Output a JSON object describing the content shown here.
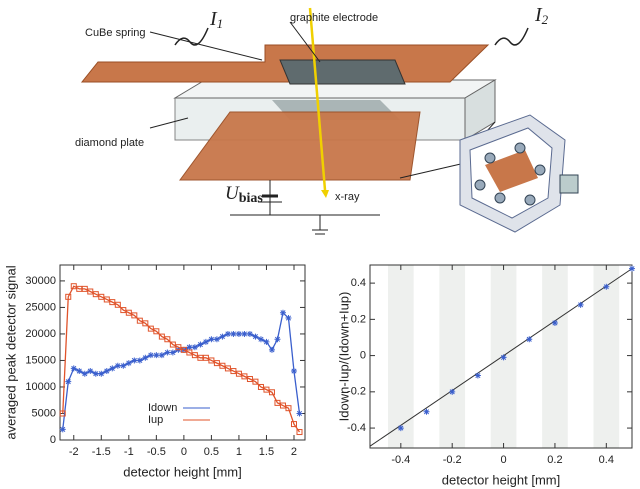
{
  "diagram": {
    "spring_label": "CuBe spring",
    "current_1": {
      "symbol": "I",
      "subscript": "1"
    },
    "electrode_label": "graphite electrode",
    "current_2": {
      "symbol": "I",
      "subscript": "2"
    },
    "plate_label": "diamond plate",
    "bias": {
      "symbol": "U",
      "subscript": "bias"
    },
    "beam_label": "x-ray"
  },
  "chart_data": [
    {
      "type": "line",
      "x_label": "detector height [mm]",
      "y_label": "averaged peak detector signal",
      "x": [
        -2.2,
        -2.1,
        -2.0,
        -1.9,
        -1.8,
        -1.7,
        -1.6,
        -1.5,
        -1.4,
        -1.3,
        -1.2,
        -1.1,
        -1.0,
        -0.9,
        -0.8,
        -0.7,
        -0.6,
        -0.5,
        -0.4,
        -0.3,
        -0.2,
        -0.1,
        0,
        0.1,
        0.2,
        0.3,
        0.4,
        0.5,
        0.6,
        0.7,
        0.8,
        0.9,
        1.0,
        1.1,
        1.2,
        1.3,
        1.4,
        1.5,
        1.6,
        1.7,
        1.8,
        1.9,
        2.0,
        2.1
      ],
      "series": [
        {
          "name": "Idown",
          "color": "#3a5fcd",
          "marker": "star",
          "values": [
            2000,
            11000,
            13500,
            13000,
            12500,
            13000,
            12500,
            12500,
            13000,
            13500,
            14000,
            14000,
            14500,
            15000,
            15000,
            15500,
            16000,
            16000,
            16000,
            16500,
            16500,
            17000,
            17000,
            17500,
            17500,
            18000,
            18500,
            19000,
            19000,
            19500,
            20000,
            20000,
            20000,
            20000,
            20000,
            19500,
            19000,
            18500,
            17000,
            19000,
            24000,
            23000,
            13000,
            5000
          ]
        },
        {
          "name": "Iup",
          "color": "#e0532a",
          "marker": "square",
          "values": [
            5000,
            27000,
            29000,
            28500,
            28500,
            28000,
            27500,
            27000,
            26500,
            26000,
            25500,
            24500,
            24000,
            23500,
            22500,
            22000,
            21000,
            20500,
            19500,
            19000,
            18000,
            17500,
            17000,
            16500,
            16000,
            15500,
            15500,
            15000,
            14500,
            14000,
            13500,
            13000,
            12500,
            12000,
            11500,
            11000,
            10000,
            9500,
            9000,
            7000,
            6500,
            6000,
            3000,
            1500
          ]
        }
      ],
      "xlim": [
        -2.25,
        2.2
      ],
      "ylim": [
        0,
        33000
      ],
      "xticks": [
        -2,
        -1.5,
        -1,
        -0.5,
        0,
        0.5,
        1,
        1.5,
        2
      ],
      "yticks": [
        0,
        5000,
        10000,
        15000,
        20000,
        25000,
        30000
      ],
      "legend": "lower-left",
      "grid": false
    },
    {
      "type": "scatter",
      "x_label": "detector height [mm]",
      "y_label": "Idown-Iup/(Idown+Iup)",
      "x": [
        -0.4,
        -0.3,
        -0.2,
        -0.1,
        0,
        0.1,
        0.2,
        0.3,
        0.4,
        0.5
      ],
      "values": [
        -0.4,
        -0.31,
        -0.2,
        -0.11,
        -0.01,
        0.09,
        0.18,
        0.28,
        0.38,
        0.48
      ],
      "color": "#3a5fcd",
      "fit_line": {
        "x": [
          -0.52,
          0.5
        ],
        "y": [
          -0.5,
          0.48
        ],
        "color": "#333333"
      },
      "bands": [
        [
          -0.45,
          -0.35
        ],
        [
          -0.25,
          -0.15
        ],
        [
          -0.05,
          0.05
        ],
        [
          0.15,
          0.25
        ],
        [
          0.35,
          0.45
        ]
      ],
      "band_color": "#eef0ee",
      "xlim": [
        -0.52,
        0.5
      ],
      "ylim": [
        -0.51,
        0.5
      ],
      "xticks": [
        -0.4,
        -0.2,
        0,
        0.2,
        0.4
      ],
      "yticks": [
        -0.4,
        -0.2,
        0,
        0.2,
        0.4
      ],
      "grid": false
    }
  ]
}
